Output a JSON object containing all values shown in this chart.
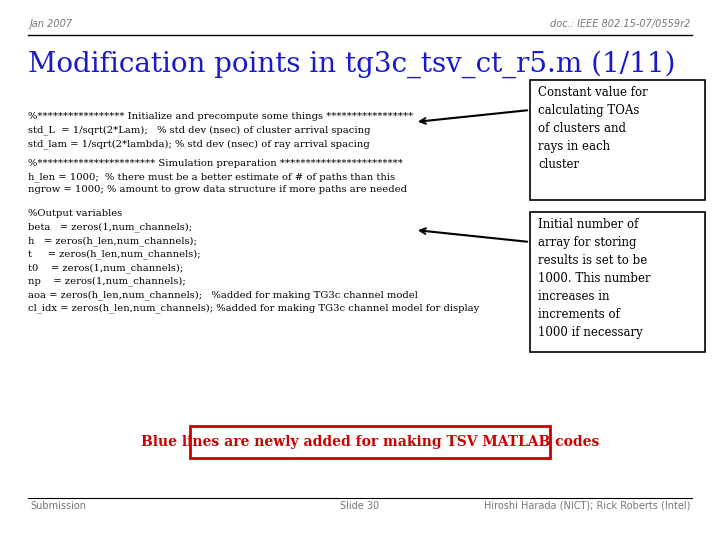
{
  "header_left": "Jan 2007",
  "header_right": "doc.: IEEE 802.15-07/0559r2",
  "title": "Modification points in tg3c_tsv_ct_r5.m (1/11)",
  "code_block1": [
    "%***************** Initialize and precompute some things *****************",
    "std_L  = 1/sqrt(2*Lam);   % std dev (nsec) of cluster arrival spacing",
    "std_lam = 1/sqrt(2*lambda); % std dev (nsec) of ray arrival spacing"
  ],
  "code_block2": [
    "%*********************** Simulation preparation ************************",
    "h_len = 1000;  % there must be a better estimate of # of paths than this",
    "ngrow = 1000; % amount to grow data structure if more paths are needed"
  ],
  "code_block3": [
    "%Output variables",
    "beta   = zeros(1,num_channels);",
    "h   = zeros(h_len,num_channels);",
    "t     = zeros(h_len,num_channels);",
    "t0    = zeros(1,num_channels);",
    "np    = zeros(1,num_channels);",
    "aoa = zeros(h_len,num_channels);   %added for making TG3c channel model",
    "cl_idx = zeros(h_len,num_channels); %added for making TG3c channel model for display"
  ],
  "box1_text": "Constant value for\ncalculating TOAs\nof clusters and\nrays in each\ncluster",
  "box2_text": "Initial number of\narray for storing\nresults is set to be\n1000. This number\nincreases in\nincrements of\n1000 if necessary",
  "bottom_banner": "Blue lines are newly added for making TSV MATLAB codes",
  "footer_left": "Submission",
  "footer_center": "Slide 30",
  "footer_right": "Hiroshi Harada (NICT); Rick Roberts (Intel)",
  "bg_color": "#ffffff",
  "title_color": "#1a1acd",
  "code_color": "#000000",
  "header_color": "#777777",
  "banner_bg": "#ffffff",
  "banner_border": "#cc0000",
  "banner_text_color": "#cc0000",
  "footer_color": "#777777",
  "line_color": "#000000"
}
